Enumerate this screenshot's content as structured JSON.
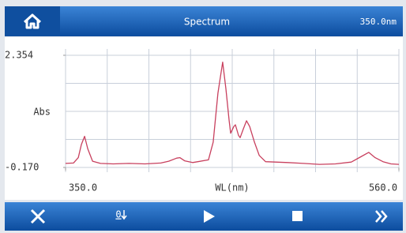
{
  "header": {
    "title": "Spectrum",
    "wavelength": "350.0nm"
  },
  "chart_data": {
    "type": "line",
    "ylabel": "Abs",
    "xlabel": "WL(nm)",
    "x": [
      350,
      355,
      358,
      360,
      362,
      364,
      367,
      372,
      380,
      390,
      400,
      410,
      415,
      420,
      422,
      425,
      430,
      440,
      443,
      446,
      449,
      451,
      453,
      454,
      456,
      457,
      459,
      460,
      462,
      464,
      466,
      469,
      472,
      476,
      490,
      500,
      510,
      520,
      530,
      536,
      541,
      545,
      550,
      555,
      560
    ],
    "y": [
      -0.08,
      -0.07,
      0.05,
      0.35,
      0.53,
      0.25,
      -0.03,
      -0.08,
      -0.09,
      -0.08,
      -0.09,
      -0.07,
      -0.03,
      0.04,
      0.05,
      -0.02,
      -0.06,
      0.0,
      0.4,
      1.5,
      2.2,
      1.6,
      0.9,
      0.6,
      0.75,
      0.79,
      0.55,
      0.5,
      0.7,
      0.88,
      0.75,
      0.4,
      0.1,
      -0.04,
      -0.06,
      -0.08,
      -0.1,
      -0.09,
      -0.05,
      0.07,
      0.17,
      0.05,
      -0.04,
      -0.09,
      -0.1
    ],
    "color": "#c8405e",
    "xlim": [
      350,
      560
    ],
    "xticks": [
      {
        "value": 350,
        "label": "350.0"
      },
      {
        "value": 560,
        "label": "560.0"
      }
    ],
    "ylim": [
      -0.17,
      2.354
    ],
    "yticks": [
      {
        "value": -0.17,
        "label": "-0.170"
      },
      2.354
    ]
  },
  "toolbar": {
    "zero_label": "0"
  }
}
